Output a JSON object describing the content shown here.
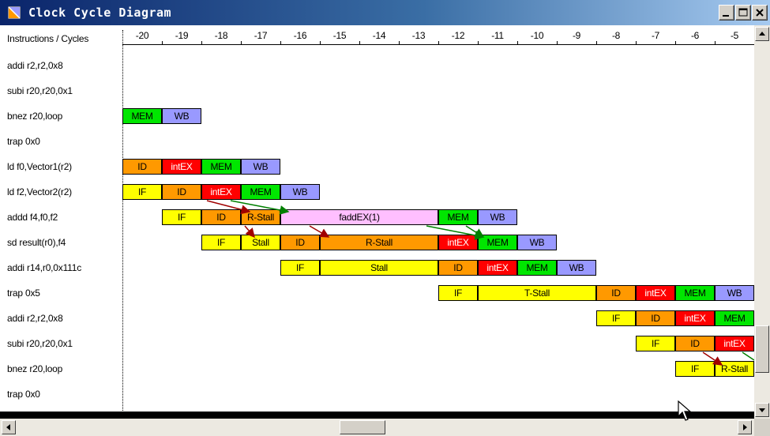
{
  "window": {
    "title": "Clock Cycle Diagram",
    "title_gradient": [
      "#0a246a",
      "#a6caf0"
    ]
  },
  "header_label": "Instructions / Cycles",
  "cycles": [
    "-20",
    "-19",
    "-18",
    "-17",
    "-16",
    "-15",
    "-14",
    "-13",
    "-12",
    "-11",
    "-10",
    "-9",
    "-8",
    "-7",
    "-6",
    "-5"
  ],
  "instructions": [
    "addi r2,r2,0x8",
    "subi r20,r20,0x1",
    "bnez r20,loop",
    "trap 0x0",
    "ld f0,Vector1(r2)",
    "ld f2,Vector2(r2)",
    "addd f4,f0,f2",
    "sd result(r0),f4",
    "addi r14,r0,0x111c",
    "trap 0x5",
    "addi r2,r2,0x8",
    "subi r20,r20,0x1",
    "bnez r20,loop",
    "trap 0x0"
  ],
  "stage_colors": {
    "IF": "#ffff00",
    "ID": "#ff9900",
    "intEX": "#ff0000",
    "MEM": "#00e600",
    "WB": "#9999ff",
    "faddEX": "#ffbfff",
    "forward_arrow_green": "#008000",
    "forward_arrow_red": "#a00000"
  },
  "pipeline": [
    {
      "row": 2,
      "stages": [
        {
          "label": "MEM",
          "kind": "mem",
          "start": 0,
          "span": 1
        },
        {
          "label": "WB",
          "kind": "wb",
          "start": 1,
          "span": 1
        }
      ]
    },
    {
      "row": 4,
      "stages": [
        {
          "label": "ID",
          "kind": "id",
          "start": 0,
          "span": 1
        },
        {
          "label": "intEX",
          "kind": "intex",
          "start": 1,
          "span": 1
        },
        {
          "label": "MEM",
          "kind": "mem",
          "start": 2,
          "span": 1
        },
        {
          "label": "WB",
          "kind": "wb",
          "start": 3,
          "span": 1
        }
      ]
    },
    {
      "row": 5,
      "stages": [
        {
          "label": "IF",
          "kind": "if",
          "start": 0,
          "span": 1
        },
        {
          "label": "ID",
          "kind": "id",
          "start": 1,
          "span": 1
        },
        {
          "label": "intEX",
          "kind": "intex",
          "start": 2,
          "span": 1
        },
        {
          "label": "MEM",
          "kind": "mem",
          "start": 3,
          "span": 1
        },
        {
          "label": "WB",
          "kind": "wb",
          "start": 4,
          "span": 1
        }
      ]
    },
    {
      "row": 6,
      "stages": [
        {
          "label": "IF",
          "kind": "if",
          "start": 1,
          "span": 1
        },
        {
          "label": "ID",
          "kind": "id",
          "start": 2,
          "span": 1
        },
        {
          "label": "R-Stall",
          "kind": "rstall",
          "start": 3,
          "span": 1
        },
        {
          "label": "faddEX(1)",
          "kind": "fadd",
          "start": 4,
          "span": 4
        },
        {
          "label": "MEM",
          "kind": "mem",
          "start": 8,
          "span": 1
        },
        {
          "label": "WB",
          "kind": "wb",
          "start": 9,
          "span": 1
        }
      ]
    },
    {
      "row": 7,
      "stages": [
        {
          "label": "IF",
          "kind": "if",
          "start": 2,
          "span": 1
        },
        {
          "label": "Stall",
          "kind": "stall",
          "start": 3,
          "span": 1
        },
        {
          "label": "ID",
          "kind": "id",
          "start": 4,
          "span": 1
        },
        {
          "label": "R-Stall",
          "kind": "rstall",
          "start": 5,
          "span": 3
        },
        {
          "label": "intEX",
          "kind": "intex",
          "start": 8,
          "span": 1
        },
        {
          "label": "MEM",
          "kind": "mem",
          "start": 9,
          "span": 1
        },
        {
          "label": "WB",
          "kind": "wb",
          "start": 10,
          "span": 1
        }
      ]
    },
    {
      "row": 8,
      "stages": [
        {
          "label": "IF",
          "kind": "if",
          "start": 4,
          "span": 1
        },
        {
          "label": "Stall",
          "kind": "stall",
          "start": 5,
          "span": 3
        },
        {
          "label": "ID",
          "kind": "id",
          "start": 8,
          "span": 1
        },
        {
          "label": "intEX",
          "kind": "intex",
          "start": 9,
          "span": 1
        },
        {
          "label": "MEM",
          "kind": "mem",
          "start": 10,
          "span": 1
        },
        {
          "label": "WB",
          "kind": "wb",
          "start": 11,
          "span": 1
        }
      ]
    },
    {
      "row": 9,
      "stages": [
        {
          "label": "IF",
          "kind": "if",
          "start": 8,
          "span": 1
        },
        {
          "label": "T-Stall",
          "kind": "tstall",
          "start": 9,
          "span": 3
        },
        {
          "label": "ID",
          "kind": "id",
          "start": 12,
          "span": 1
        },
        {
          "label": "intEX",
          "kind": "intex",
          "start": 13,
          "span": 1
        },
        {
          "label": "MEM",
          "kind": "mem",
          "start": 14,
          "span": 1
        },
        {
          "label": "WB",
          "kind": "wb",
          "start": 15,
          "span": 1
        }
      ]
    },
    {
      "row": 10,
      "stages": [
        {
          "label": "IF",
          "kind": "if",
          "start": 12,
          "span": 1
        },
        {
          "label": "ID",
          "kind": "id",
          "start": 13,
          "span": 1
        },
        {
          "label": "intEX",
          "kind": "intex",
          "start": 14,
          "span": 1
        },
        {
          "label": "MEM",
          "kind": "mem",
          "start": 15,
          "span": 1
        }
      ]
    },
    {
      "row": 11,
      "stages": [
        {
          "label": "IF",
          "kind": "if",
          "start": 13,
          "span": 1
        },
        {
          "label": "ID",
          "kind": "id",
          "start": 14,
          "span": 1
        },
        {
          "label": "intEX",
          "kind": "intex",
          "start": 15,
          "span": 1
        }
      ]
    },
    {
      "row": 12,
      "stages": [
        {
          "label": "IF",
          "kind": "if",
          "start": 14,
          "span": 1
        },
        {
          "label": "R-Stall",
          "kind": "rstall-y",
          "start": 15,
          "span": 1
        }
      ]
    }
  ]
}
